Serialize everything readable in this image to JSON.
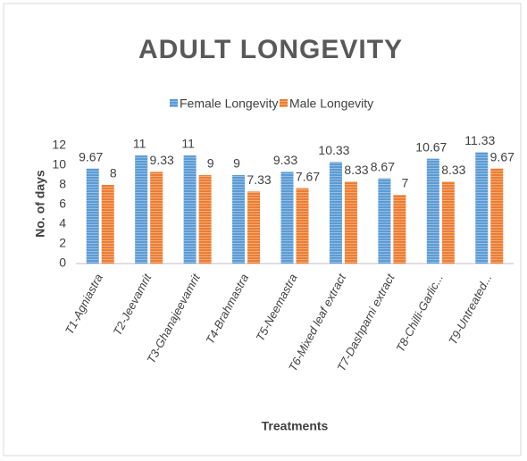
{
  "chart_data": {
    "type": "bar",
    "title": "ADULT LONGEVITY",
    "categories": [
      "T1-Agniastra",
      "T2-Jeevamrit",
      "T3-Ghanajeevamrit",
      "T4-Brahmastra",
      "T5-Neemastra",
      "T6-Mixed leaf extract",
      "T7-Dashparni extract",
      "T8-Chilli-Garlic...",
      "T9-Untreated..."
    ],
    "series": [
      {
        "name": "Female Longevity",
        "color": "#5b9bd5",
        "values": [
          9.67,
          11,
          11,
          9,
          9.33,
          10.33,
          8.67,
          10.67,
          11.33
        ]
      },
      {
        "name": "Male Longevity",
        "color": "#ed7d31",
        "values": [
          8,
          9.33,
          9,
          7.33,
          7.67,
          8.33,
          7,
          8.33,
          9.67
        ]
      }
    ],
    "y_label": "No. of days",
    "x_label": "Treatments",
    "ylim": [
      0,
      12
    ],
    "yticks": [
      0,
      2,
      4,
      6,
      8,
      10,
      12
    ],
    "grid": false,
    "legend": "top"
  }
}
